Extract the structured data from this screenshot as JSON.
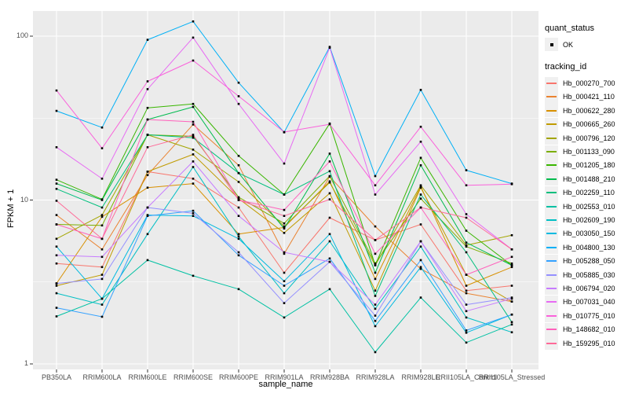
{
  "figure": {
    "background": "#FFFFFF",
    "panel_background": "#EBEBEB",
    "grid_color": "#FFFFFF",
    "tick_color": "#333333",
    "axis_text_color": "#4D4D4D",
    "point_color": "#000000"
  },
  "legend": {
    "quant_title": "quant_status",
    "quant_items": [
      {
        "label": "OK",
        "symbol": "black-point"
      }
    ],
    "tracking_title": "tracking_id"
  },
  "chart_data": {
    "type": "line",
    "title": "",
    "xlabel": "sample_name",
    "ylabel": "FPKM + 1",
    "y_scale": "log10",
    "ylim": [
      1,
      140
    ],
    "y_ticks": [
      1,
      10,
      100
    ],
    "y_tick_labels": [
      "1",
      "10",
      "100"
    ],
    "y_minor_breaks": [
      3.162,
      31.62
    ],
    "grid": true,
    "legend_position": "right",
    "point_marker": "small black square (quant_status = OK)",
    "categories": [
      "PB350LA",
      "RRIM600LA",
      "RRIM600LE",
      "RRIM600SE",
      "RRIM600PE",
      "RRIM901LA",
      "RRIM928BA",
      "RRIM928LA",
      "RRIM928LE",
      "RRII105LA_Control",
      "RRII105LA_Stressed"
    ],
    "series": [
      {
        "name": "Hb_000270_700",
        "color": "#F8766D",
        "values": [
          4.1,
          3.9,
          14.9,
          13.5,
          9.0,
          3.6,
          7.8,
          5.7,
          7.1,
          2.8,
          3.0
        ]
      },
      {
        "name": "Hb_000421_110",
        "color": "#EA8331",
        "values": [
          8.1,
          5.0,
          14.2,
          28.9,
          16.3,
          4.7,
          13.9,
          6.9,
          3.8,
          2.7,
          2.4
        ]
      },
      {
        "name": "Hb_000622_280",
        "color": "#D89000",
        "values": [
          3.1,
          7.9,
          11.9,
          12.6,
          6.2,
          6.8,
          13.0,
          3.3,
          12.1,
          3.0,
          3.9
        ]
      },
      {
        "name": "Hb_000665_260",
        "color": "#C09B00",
        "values": [
          3.0,
          3.5,
          14.9,
          19.0,
          10.2,
          6.3,
          11.0,
          2.8,
          11.9,
          3.5,
          2.4
        ]
      },
      {
        "name": "Hb_000796_120",
        "color": "#A3A500",
        "values": [
          5.8,
          8.1,
          25.0,
          20.3,
          12.9,
          6.9,
          12.8,
          4.0,
          12.3,
          5.3,
          6.1
        ]
      },
      {
        "name": "Hb_001133_090",
        "color": "#7CAE00",
        "values": [
          7.1,
          7.0,
          25.0,
          24.5,
          10.4,
          7.2,
          14.0,
          4.1,
          10.2,
          5.2,
          4.1
        ]
      },
      {
        "name": "Hb_001205_180",
        "color": "#39B600",
        "values": [
          13.3,
          10.1,
          36.5,
          38.6,
          18.6,
          10.8,
          29.3,
          4.0,
          18.1,
          6.5,
          4.0
        ]
      },
      {
        "name": "Hb_001488_210",
        "color": "#00BB4E",
        "values": [
          12.6,
          10.0,
          31.0,
          37.0,
          14.6,
          6.7,
          19.2,
          3.6,
          16.3,
          5.5,
          4.0
        ]
      },
      {
        "name": "Hb_002259_110",
        "color": "#00BF7D",
        "values": [
          11.7,
          9.0,
          25.0,
          24.0,
          14.6,
          10.8,
          15.0,
          2.6,
          10.8,
          4.8,
          1.8
        ]
      },
      {
        "name": "Hb_002553_010",
        "color": "#00C1A3",
        "values": [
          1.95,
          2.5,
          4.3,
          3.45,
          2.86,
          1.92,
          2.86,
          1.18,
          2.54,
          1.35,
          1.74
        ]
      },
      {
        "name": "Hb_002609_190",
        "color": "#00BFC4",
        "values": [
          2.7,
          2.3,
          6.2,
          15.9,
          6.0,
          2.7,
          5.6,
          2.17,
          5.2,
          1.92,
          1.56
        ]
      },
      {
        "name": "Hb_003050_150",
        "color": "#00BAE0",
        "values": [
          5.2,
          2.5,
          8.1,
          8.0,
          5.8,
          3.2,
          6.2,
          1.7,
          3.9,
          1.55,
          2.0
        ]
      },
      {
        "name": "Hb_004800_130",
        "color": "#00B0F6",
        "values": [
          35.0,
          27.7,
          95.0,
          123.0,
          52.0,
          25.9,
          86.0,
          14.0,
          47.0,
          15.2,
          12.6
        ]
      },
      {
        "name": "Hb_005288_050",
        "color": "#35A2FF",
        "values": [
          2.2,
          1.94,
          8.0,
          8.6,
          4.6,
          3.0,
          4.4,
          1.83,
          4.3,
          1.6,
          2.0
        ]
      },
      {
        "name": "Hb_005885_030",
        "color": "#9590FF",
        "values": [
          3.1,
          3.3,
          9.0,
          8.3,
          4.8,
          2.35,
          4.2,
          1.97,
          5.6,
          2.3,
          2.54
        ]
      },
      {
        "name": "Hb_006794_020",
        "color": "#C77CFF",
        "values": [
          4.6,
          4.5,
          9.0,
          17.2,
          8.0,
          4.8,
          4.2,
          2.3,
          5.6,
          2.1,
          2.5
        ]
      },
      {
        "name": "Hb_007031_040",
        "color": "#E76BF3",
        "values": [
          21.0,
          13.5,
          47.5,
          98.0,
          38.6,
          16.7,
          85.0,
          10.8,
          22.7,
          8.2,
          5.0
        ]
      },
      {
        "name": "Hb_010775_010",
        "color": "#FA62DB",
        "values": [
          46.6,
          20.7,
          53.0,
          71.0,
          43.0,
          26.0,
          29.0,
          12.3,
          28.0,
          12.3,
          12.5
        ]
      },
      {
        "name": "Hb_148682_010",
        "color": "#FF62BC",
        "values": [
          7.1,
          5.8,
          31.0,
          30.0,
          10.0,
          8.7,
          17.2,
          4.7,
          9.0,
          3.5,
          4.5
        ]
      },
      {
        "name": "Hb_159295_010",
        "color": "#FF6A98",
        "values": [
          9.9,
          5.8,
          21.0,
          25.0,
          10.0,
          8.0,
          10.1,
          5.7,
          9.0,
          7.8,
          5.0
        ]
      }
    ]
  }
}
